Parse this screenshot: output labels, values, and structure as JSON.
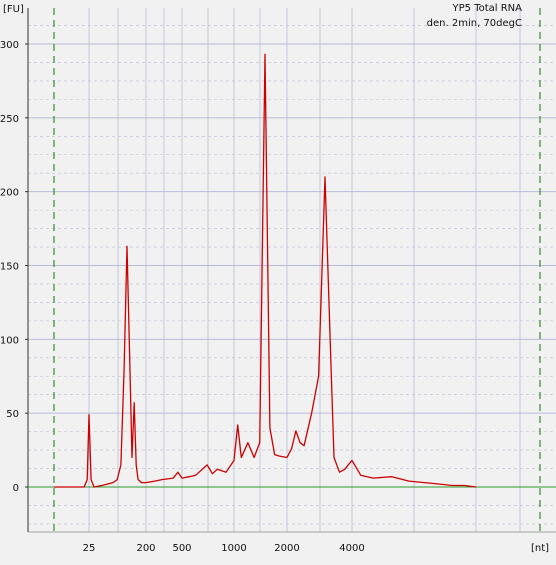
{
  "chart_data": {
    "type": "line",
    "title": "YP5 Total RNA",
    "subtitle": "den. 2min, 70degC",
    "ylabel": "[FU]",
    "xlabel": "[nt]",
    "ylim": [
      -30,
      325
    ],
    "y_ticks": [
      0,
      50,
      100,
      150,
      200,
      250,
      300
    ],
    "x_ticks": [
      "25",
      "200",
      "500",
      "1000",
      "2000",
      "4000"
    ],
    "grid": true,
    "x_scale": "ladder (non-linear, nucleotides)",
    "series": [
      {
        "color": "#cc0000",
        "x": [
          5,
          20,
          23,
          25,
          27,
          30,
          40,
          60,
          70,
          80,
          90,
          100,
          110,
          120,
          130,
          140,
          150,
          160,
          170,
          180,
          200,
          250,
          300,
          400,
          450,
          500,
          550,
          600,
          700,
          750,
          800,
          900,
          1000,
          1050,
          1100,
          1200,
          1300,
          1400,
          1500,
          1600,
          1700,
          1800,
          2000,
          2100,
          2200,
          2300,
          2400,
          2600,
          2800,
          3000,
          3200,
          3300,
          3500,
          3700,
          4000,
          4200,
          4500,
          5000,
          5500,
          6000,
          6500,
          7000,
          7500,
          8000
        ],
        "values": [
          0,
          0,
          5,
          49,
          5,
          0,
          1,
          3,
          5,
          15,
          80,
          163,
          90,
          20,
          57,
          15,
          5,
          4,
          3,
          3,
          3,
          4,
          5,
          6,
          10,
          6,
          7,
          8,
          15,
          9,
          12,
          10,
          18,
          42,
          20,
          30,
          20,
          30,
          293,
          40,
          22,
          21,
          20,
          26,
          38,
          30,
          28,
          50,
          75,
          210,
          80,
          20,
          10,
          12,
          18,
          8,
          6,
          7,
          4,
          3,
          2,
          1,
          1,
          0
        ]
      }
    ]
  },
  "colors": {
    "background": "#f1f1f1",
    "grid": "#b8bcd8",
    "baseline": "#2a9a2a",
    "marker": "#2e8b2e",
    "trace": "#cc0000"
  }
}
